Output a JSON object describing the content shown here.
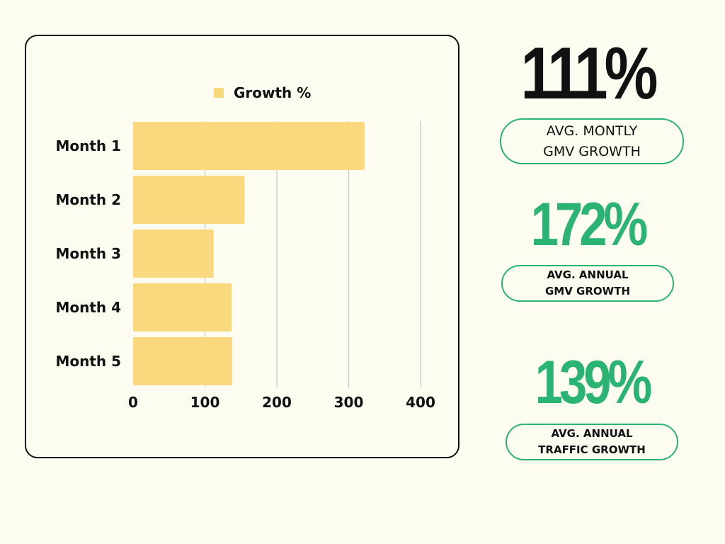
{
  "chart_data": {
    "type": "bar",
    "orientation": "horizontal",
    "categories": [
      "Month 1",
      "Month 2",
      "Month 3",
      "Month 4",
      "Month 5"
    ],
    "series": [
      {
        "name": "Growth %",
        "values": [
          322,
          155,
          112,
          137,
          138
        ]
      }
    ],
    "x_ticks": [
      "0",
      "100",
      "200",
      "300",
      "400"
    ],
    "xlim": [
      0,
      400
    ],
    "legend_position": "top",
    "grid": true,
    "bar_color": "#fad87e"
  },
  "stats": [
    {
      "value": "111%",
      "label_line1": "AVG. MONTLY",
      "label_line2": "GMV GROWTH",
      "value_color": "#111111"
    },
    {
      "value": "172%",
      "label_line1": "AVG. ANNUAL",
      "label_line2": "GMV GROWTH",
      "value_color": "#2bb373"
    },
    {
      "value": "139%",
      "label_line1": "AVG. ANNUAL",
      "label_line2": "TRAFFIC GROWTH",
      "value_color": "#2bb373"
    }
  ],
  "colors": {
    "background": "#fdfcf0",
    "accent_green": "#2bb373",
    "bar_yellow": "#fad87e",
    "gridline": "#c8c8c8"
  }
}
